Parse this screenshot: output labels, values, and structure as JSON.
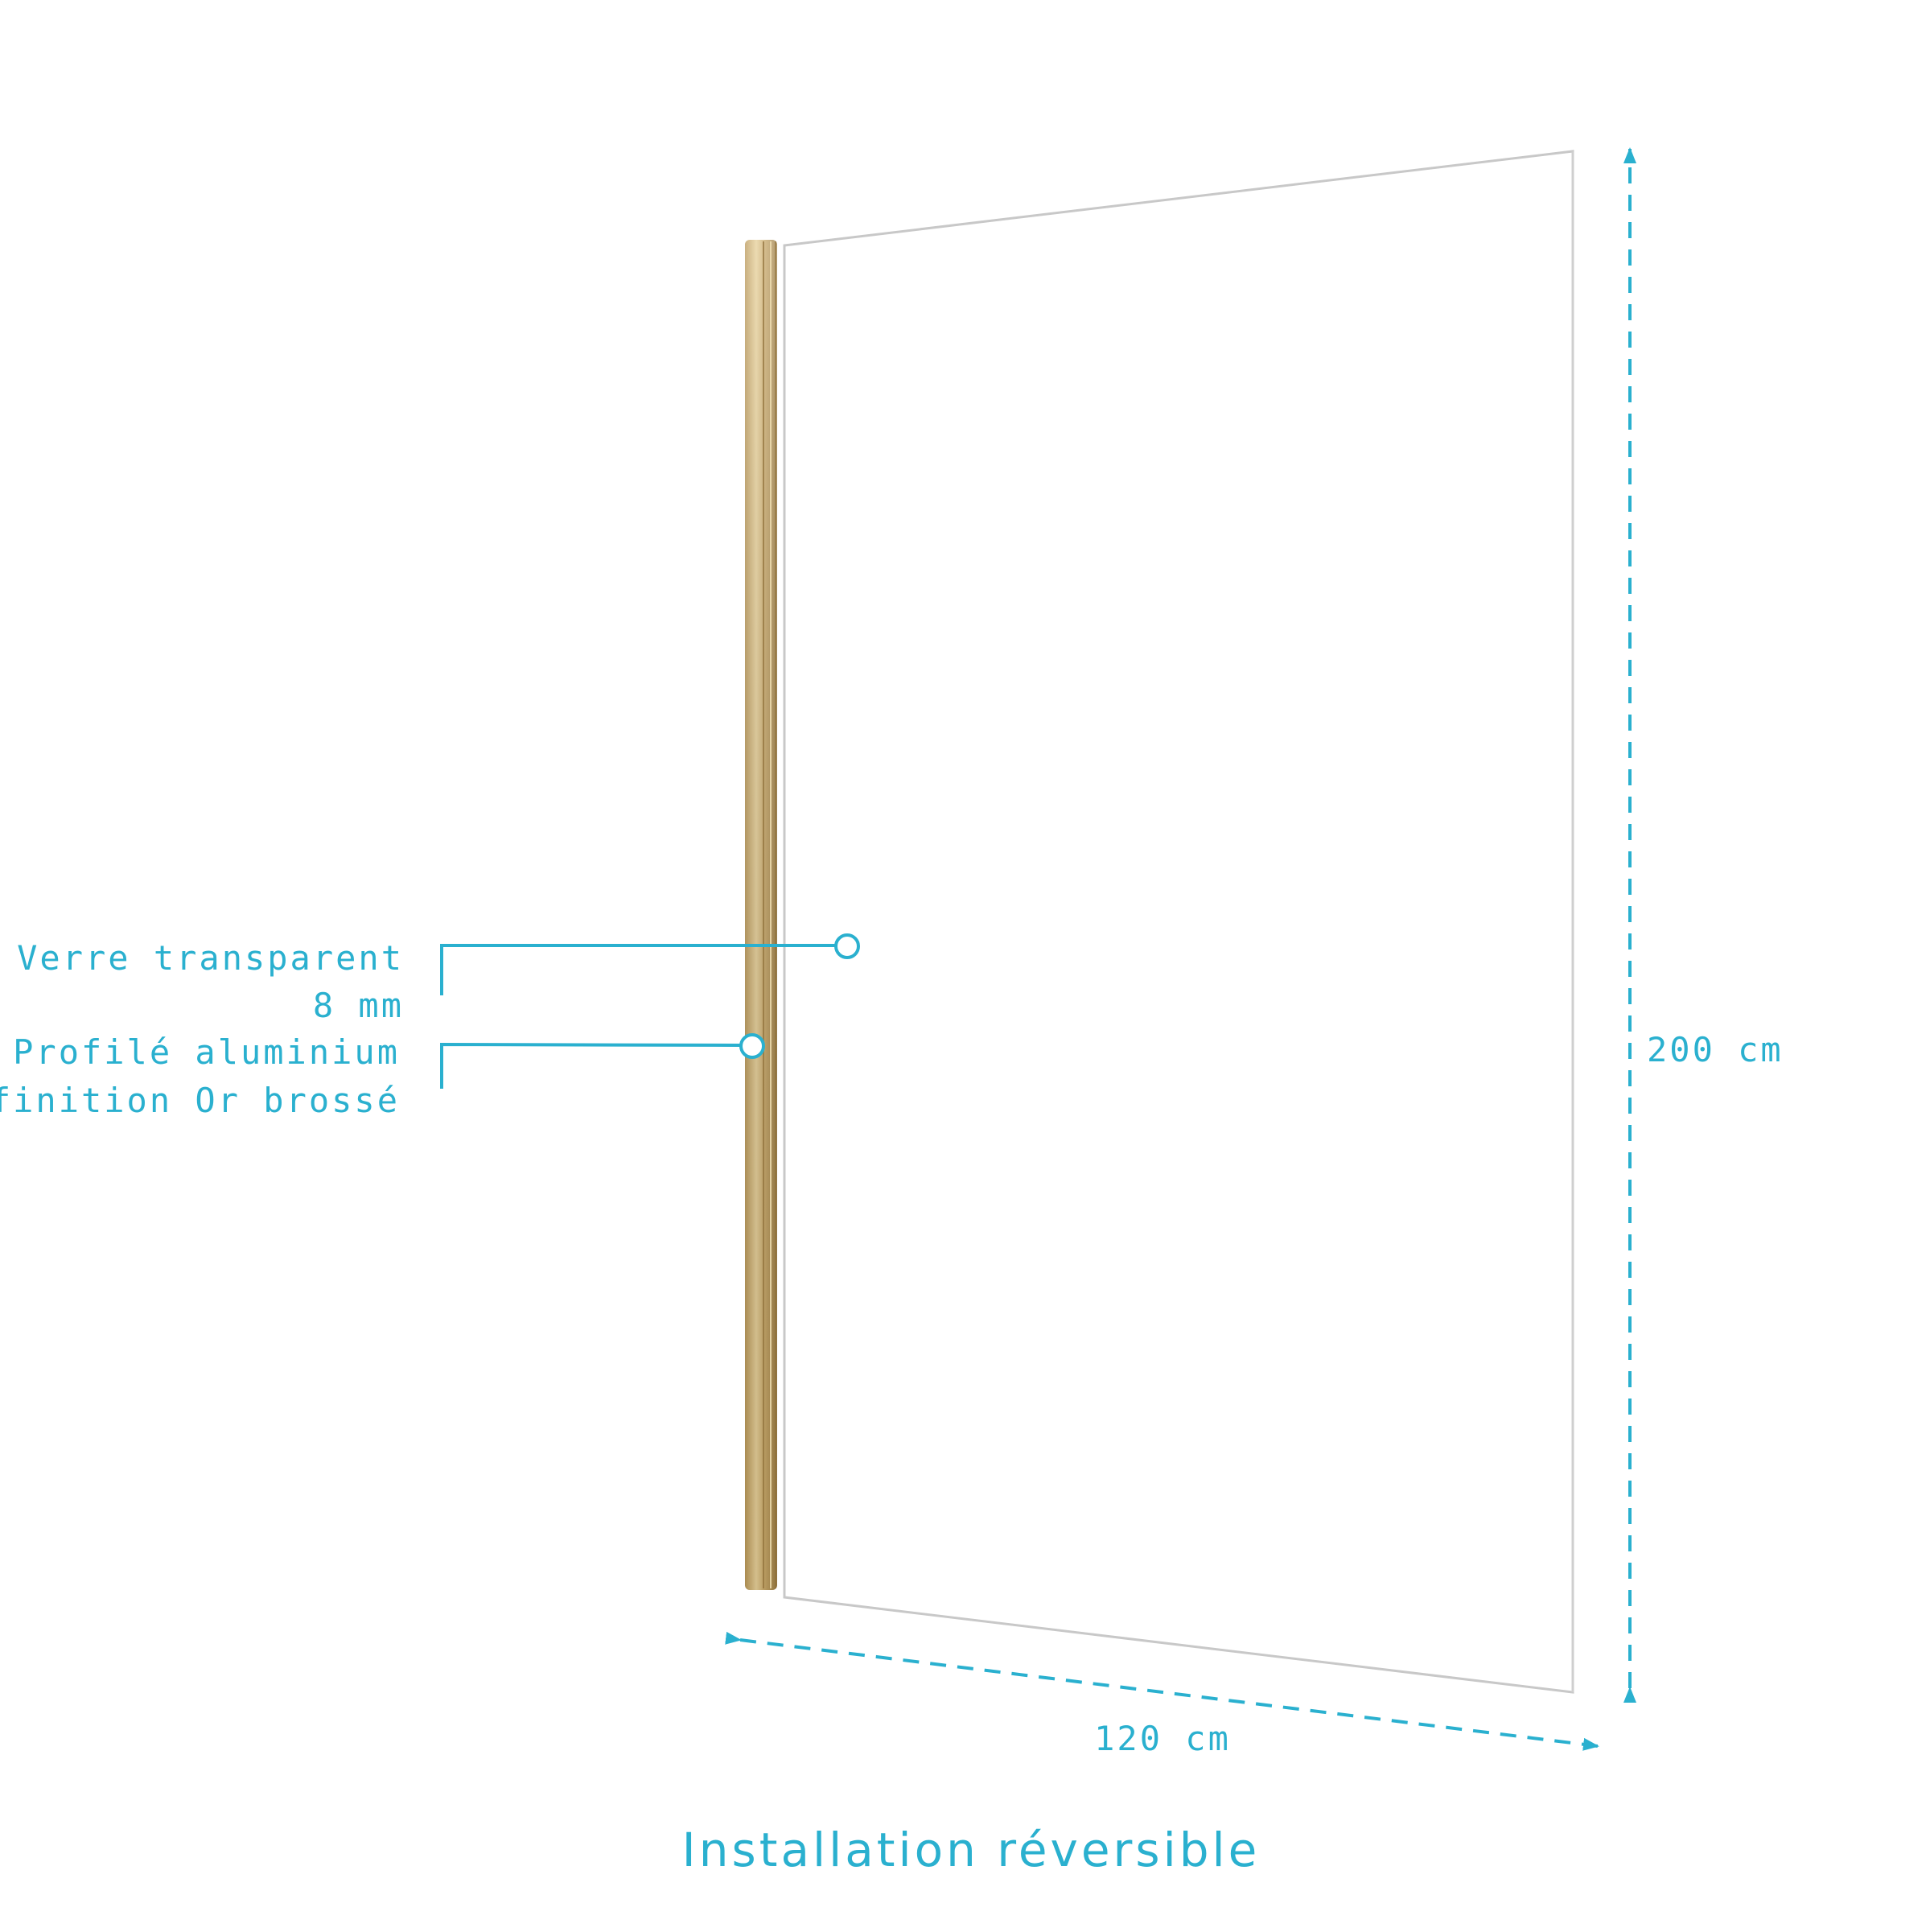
{
  "callouts": {
    "glass": {
      "line1": "Verre transparent",
      "line2": "8 mm"
    },
    "profile": {
      "line1": "Profilé aluminium",
      "line2": "finition Or brossé"
    }
  },
  "dimensions": {
    "width": "120 cm",
    "height": "200 cm"
  },
  "footer": {
    "caption": "Installation réversible"
  },
  "colors": {
    "accent": "#2ab0cf",
    "profile_gold": "#c9a96a",
    "glass_edge": "#c8c8c8"
  }
}
